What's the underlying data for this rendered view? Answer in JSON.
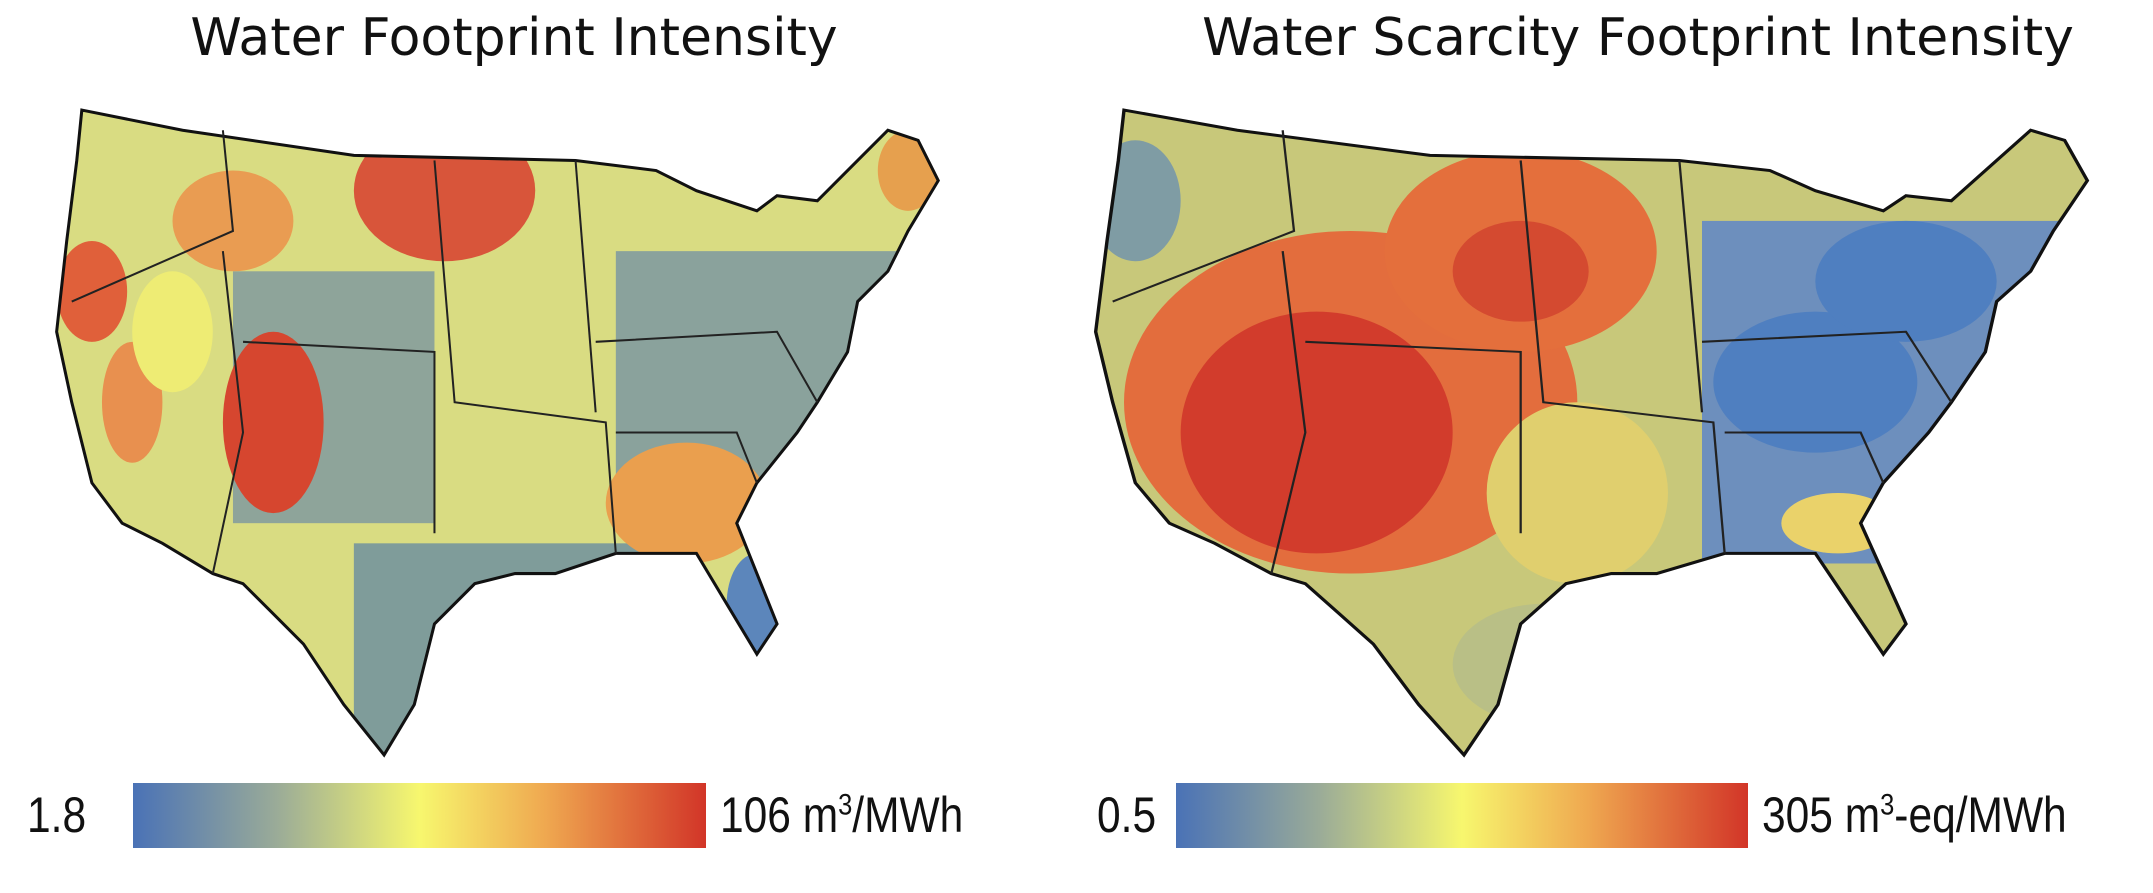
{
  "panels": [
    {
      "title": "Water Footprint Intensity",
      "legend": {
        "min": "1.8",
        "max_value": "106 m",
        "max_sup": "3",
        "max_suffix": "/MWh"
      },
      "colors": {
        "low": "#4a72b6",
        "mid": "#f7f76e",
        "high": "#d23528"
      }
    },
    {
      "title": "Water Scarcity Footprint Intensity",
      "legend": {
        "min": "0.5",
        "max_value": "305 m",
        "max_sup": "3",
        "max_suffix": "-eq/MWh"
      },
      "colors": {
        "low": "#4a72b6",
        "mid": "#f7f76e",
        "high": "#d23528"
      }
    }
  ]
}
